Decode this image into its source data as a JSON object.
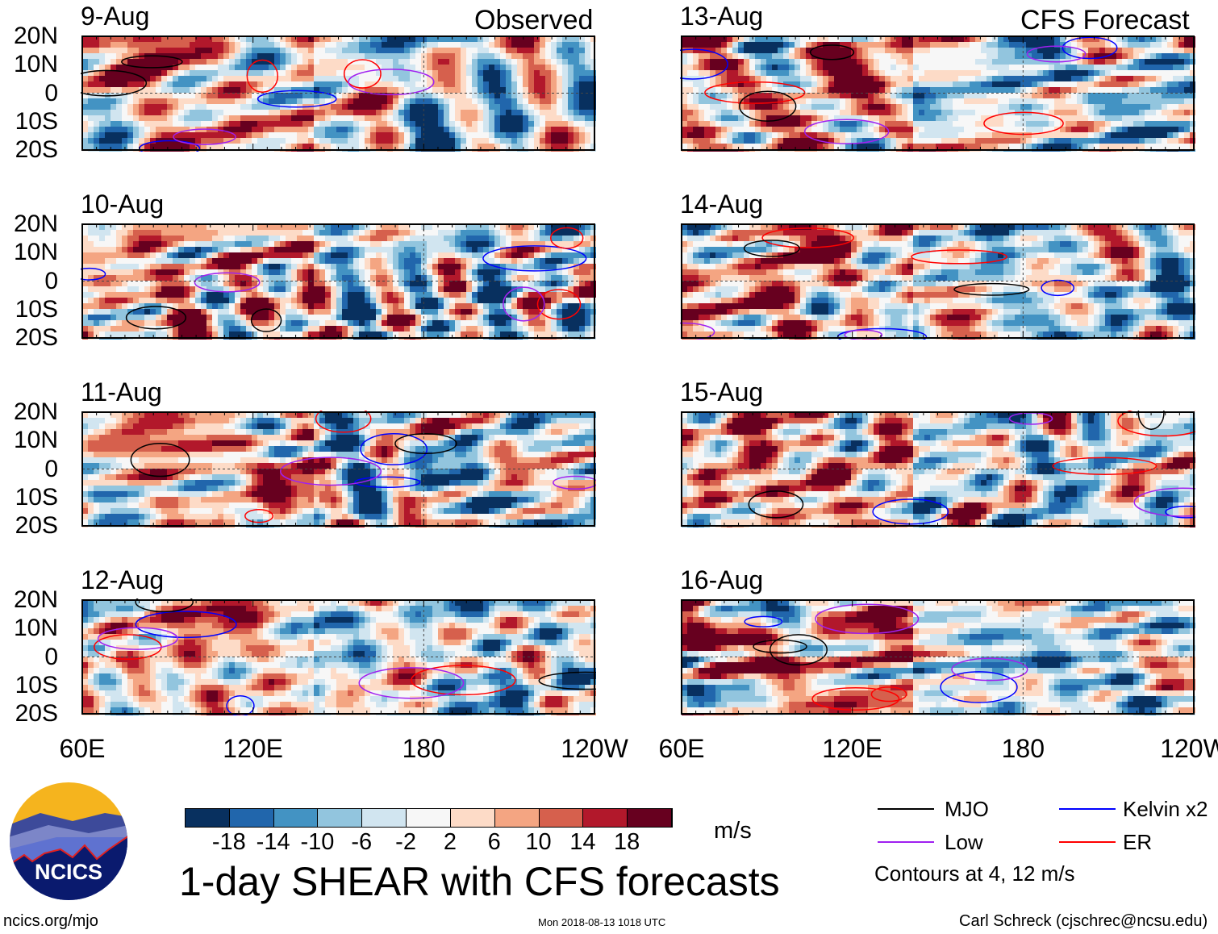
{
  "left_header": "Observed",
  "right_header": "CFS Forecast",
  "chart_data": {
    "type": "heatmap",
    "title": "1-day SHEAR with CFS forecasts",
    "units": "m/s",
    "panels": [
      {
        "date": "9-Aug",
        "column": "Observed"
      },
      {
        "date": "10-Aug",
        "column": "Observed"
      },
      {
        "date": "11-Aug",
        "column": "Observed"
      },
      {
        "date": "12-Aug",
        "column": "Observed"
      },
      {
        "date": "13-Aug",
        "column": "CFS Forecast"
      },
      {
        "date": "14-Aug",
        "column": "CFS Forecast"
      },
      {
        "date": "15-Aug",
        "column": "CFS Forecast"
      },
      {
        "date": "16-Aug",
        "column": "CFS Forecast"
      }
    ],
    "y_ticks": [
      "20N",
      "10N",
      "0",
      "10S",
      "20S"
    ],
    "x_ticks": [
      "60E",
      "120E",
      "180",
      "120W"
    ],
    "lat_range": [
      -20,
      20
    ],
    "lon_range": [
      60,
      240
    ],
    "colorbar": {
      "levels": [
        "-18",
        "-14",
        "-10",
        "-6",
        "-2",
        "2",
        "6",
        "10",
        "14",
        "18"
      ],
      "colors": [
        "#08305f",
        "#2166ac",
        "#4393c3",
        "#92c5de",
        "#d1e5f0",
        "#f7f7f7",
        "#fddbc7",
        "#f4a582",
        "#d6604d",
        "#b2182b",
        "#67001f"
      ]
    },
    "legend": [
      {
        "label": "MJO",
        "color": "#000000"
      },
      {
        "label": "Kelvin x2",
        "color": "#0000ff"
      },
      {
        "label": "Low",
        "color": "#a020f0"
      },
      {
        "label": "ER",
        "color": "#ff0000"
      }
    ],
    "contour_note": "Contours at 4, 12 m/s"
  },
  "footer": {
    "logo_text": "NCICS",
    "url": "ncics.org/mjo",
    "timestamp": "Mon 2018-08-13 1018 UTC",
    "credit": "Carl Schreck (cjschrec@ncsu.edu)"
  }
}
